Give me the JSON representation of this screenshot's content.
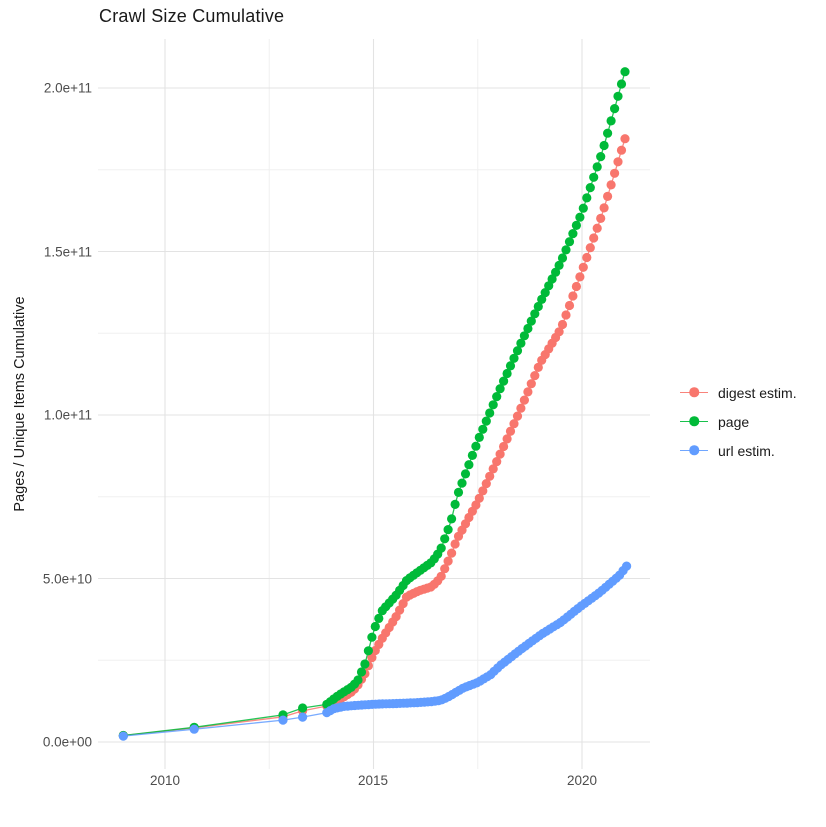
{
  "title": "Crawl Size Cumulative",
  "axes": {
    "y_label": "Pages / Unique Items Cumulative",
    "x_tick_labels": [
      "2010",
      "2015",
      "2020"
    ],
    "y_tick_labels": [
      "0.0e+00",
      "5.0e+10",
      "1.0e+11",
      "1.5e+11",
      "2.0e+11"
    ]
  },
  "legend": {
    "items": [
      {
        "label": "digest estim.",
        "color": "#F8766D"
      },
      {
        "label": "page",
        "color": "#00BA38"
      },
      {
        "label": "url estim.",
        "color": "#619CFF"
      }
    ]
  },
  "chart_data": {
    "type": "scatter",
    "title": "Crawl Size Cumulative",
    "xlabel": "",
    "ylabel": "Pages / Unique Items Cumulative",
    "x_axis_unit": "year",
    "xlim": [
      2008.4,
      2021.65
    ],
    "ylim": [
      -8000000000.0,
      216000000000.0
    ],
    "x_major_ticks": [
      2010,
      2015,
      2020
    ],
    "x_minor_ticks": [
      2012.5,
      2017.5
    ],
    "y_major_ticks": [
      0,
      50000000000.0,
      100000000000.0,
      150000000000.0,
      200000000000.0
    ],
    "y_minor_ticks": [
      25000000000.0,
      75000000000.0,
      125000000000.0,
      175000000000.0
    ],
    "grid": true,
    "legend_position": "right",
    "style": "points connected by thin lines, monthly cadence after 2014",
    "dense_point_interval_years": 0.08333,
    "series": [
      {
        "name": "digest estim.",
        "color": "#F8766D",
        "sparse_points": [
          [
            2009.0,
            2000000000.0
          ],
          [
            2010.7,
            4300000000.0
          ],
          [
            2012.83,
            7700000000.0
          ],
          [
            2013.3,
            9500000000.0
          ]
        ],
        "dense_keypoints": [
          [
            2013.88,
            11000000000.0
          ],
          [
            2014.08,
            12000000000.0
          ],
          [
            2014.25,
            13500000000.0
          ],
          [
            2014.5,
            15500000000.0
          ],
          [
            2014.63,
            17500000000.0
          ],
          [
            2014.8,
            21000000000.0
          ],
          [
            2015.0,
            27000000000.0
          ],
          [
            2015.2,
            31500000000.0
          ],
          [
            2015.55,
            38500000000.0
          ],
          [
            2015.8,
            44500000000.0
          ],
          [
            2016.1,
            46300000000.0
          ],
          [
            2016.4,
            47500000000.0
          ],
          [
            2016.6,
            50000000000.0
          ],
          [
            2016.85,
            57000000000.0
          ],
          [
            2017.0,
            62000000000.0
          ],
          [
            2017.5,
            73500000000.0
          ],
          [
            2018.0,
            87000000000.0
          ],
          [
            2018.5,
            101000000000.0
          ],
          [
            2019.0,
            116000000000.0
          ],
          [
            2019.5,
            126500000000.0
          ],
          [
            2020.0,
            144000000000.0
          ],
          [
            2020.5,
            162000000000.0
          ],
          [
            2021.03,
            184500000000.0
          ]
        ]
      },
      {
        "name": "page",
        "color": "#00BA38",
        "sparse_points": [
          [
            2009.0,
            2000000000.0
          ],
          [
            2010.7,
            4500000000.0
          ],
          [
            2012.83,
            8300000000.0
          ],
          [
            2013.3,
            10400000000.0
          ]
        ],
        "dense_keypoints": [
          [
            2013.88,
            11500000000.0
          ],
          [
            2014.08,
            13500000000.0
          ],
          [
            2014.25,
            15000000000.0
          ],
          [
            2014.5,
            17000000000.0
          ],
          [
            2014.63,
            19000000000.0
          ],
          [
            2014.8,
            24000000000.0
          ],
          [
            2015.0,
            34000000000.0
          ],
          [
            2015.2,
            40000000000.0
          ],
          [
            2015.55,
            45000000000.0
          ],
          [
            2015.8,
            49500000000.0
          ],
          [
            2016.1,
            52300000000.0
          ],
          [
            2016.4,
            55000000000.0
          ],
          [
            2016.6,
            58500000000.0
          ],
          [
            2016.85,
            67000000000.0
          ],
          [
            2017.0,
            75000000000.0
          ],
          [
            2017.5,
            92000000000.0
          ],
          [
            2018.0,
            107000000000.0
          ],
          [
            2018.5,
            121000000000.0
          ],
          [
            2019.0,
            134500000000.0
          ],
          [
            2019.5,
            147000000000.0
          ],
          [
            2020.0,
            162000000000.0
          ],
          [
            2020.5,
            181000000000.0
          ],
          [
            2021.03,
            205000000000.0
          ]
        ]
      },
      {
        "name": "url estim.",
        "color": "#619CFF",
        "sparse_points": [
          [
            2009.0,
            1800000000.0
          ],
          [
            2010.7,
            3900000000.0
          ],
          [
            2012.83,
            6700000000.0
          ],
          [
            2013.3,
            7600000000.0
          ]
        ],
        "dense_keypoints": [
          [
            2013.88,
            9000000000.0
          ],
          [
            2014.05,
            10200000000.0
          ],
          [
            2014.3,
            10900000000.0
          ],
          [
            2014.7,
            11300000000.0
          ],
          [
            2015.1,
            11600000000.0
          ],
          [
            2015.6,
            11800000000.0
          ],
          [
            2016.0,
            12000000000.0
          ],
          [
            2016.35,
            12300000000.0
          ],
          [
            2016.6,
            12700000000.0
          ],
          [
            2016.75,
            13500000000.0
          ],
          [
            2016.9,
            14600000000.0
          ],
          [
            2017.15,
            16500000000.0
          ],
          [
            2017.5,
            18200000000.0
          ],
          [
            2017.8,
            20500000000.0
          ],
          [
            2018.05,
            23500000000.0
          ],
          [
            2018.5,
            28000000000.0
          ],
          [
            2019.0,
            32700000000.0
          ],
          [
            2019.5,
            36700000000.0
          ],
          [
            2019.95,
            41300000000.0
          ],
          [
            2020.45,
            46000000000.0
          ],
          [
            2020.9,
            51000000000.0
          ],
          [
            2021.07,
            53800000000.0
          ]
        ]
      }
    ]
  }
}
